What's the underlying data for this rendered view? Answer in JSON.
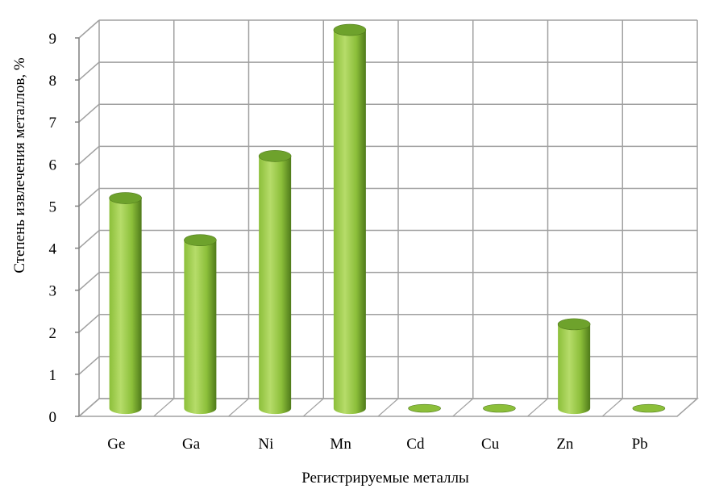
{
  "chart_data": {
    "type": "bar",
    "style": "3d-cylinder",
    "categories": [
      "Ge",
      "Ga",
      "Ni",
      "Mn",
      "Cd",
      "Cu",
      "Zn",
      "Pb"
    ],
    "values": [
      5,
      4,
      6,
      9,
      0,
      0,
      2,
      0
    ],
    "xlabel": "Регистрируемые металлы",
    "ylabel": "Степень извлечения металлов, %",
    "ylim": [
      0,
      9
    ],
    "yticks": [
      "0",
      "1",
      "2",
      "3",
      "4",
      "5",
      "6",
      "7",
      "8",
      "9"
    ],
    "grid": true,
    "legend": "none",
    "colors": {
      "bar_light": "#b6dc6a",
      "bar_mid": "#8cbf3a",
      "bar_dark": "#4f7a1a",
      "bar_top": "#6ea22c",
      "grid": "#a0a0a0",
      "axis": "#7f7f7f"
    }
  }
}
